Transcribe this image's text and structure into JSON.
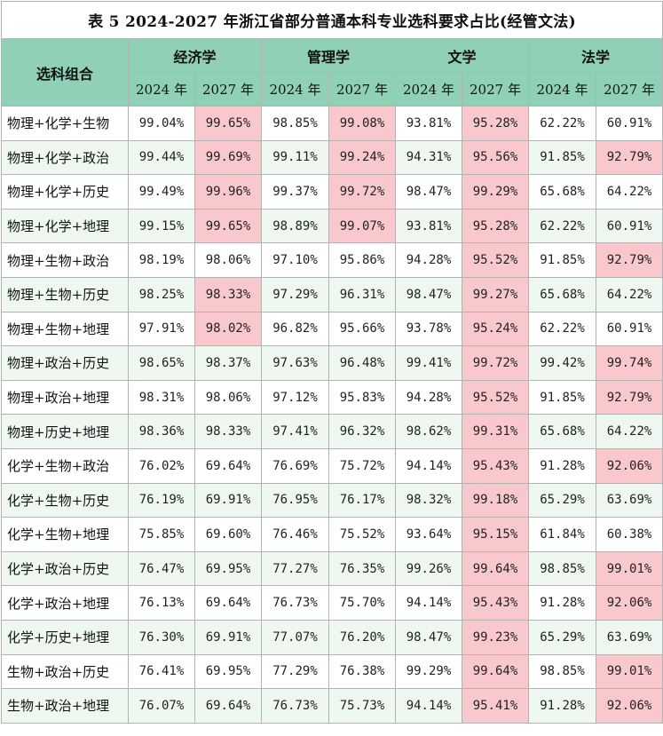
{
  "title": "表 5  2024-2027 年浙江省部分普通本科专业选科要求占比(经管文法)",
  "corner_label": "选科组合",
  "majors": [
    "经济学",
    "管理学",
    "文学",
    "法学"
  ],
  "years": [
    "2024 年",
    "2027 年"
  ],
  "highlight_color": "#f9c8cd",
  "header_color": "#8fd0b7",
  "rows": [
    {
      "combo": "物理+化学+生物",
      "values": [
        "99.04%",
        "99.65%",
        "98.85%",
        "99.08%",
        "93.81%",
        "95.28%",
        "62.22%",
        "60.91%"
      ],
      "hl": [
        1,
        3,
        5
      ]
    },
    {
      "combo": "物理+化学+政治",
      "values": [
        "99.44%",
        "99.69%",
        "99.11%",
        "99.24%",
        "94.31%",
        "95.56%",
        "91.85%",
        "92.79%"
      ],
      "hl": [
        1,
        3,
        5,
        7
      ]
    },
    {
      "combo": "物理+化学+历史",
      "values": [
        "99.49%",
        "99.96%",
        "99.37%",
        "99.72%",
        "98.47%",
        "99.29%",
        "65.68%",
        "64.22%"
      ],
      "hl": [
        1,
        3,
        5
      ]
    },
    {
      "combo": "物理+化学+地理",
      "values": [
        "99.15%",
        "99.65%",
        "98.89%",
        "99.07%",
        "93.81%",
        "95.28%",
        "62.22%",
        "60.91%"
      ],
      "hl": [
        1,
        3,
        5
      ]
    },
    {
      "combo": "物理+生物+政治",
      "values": [
        "98.19%",
        "98.06%",
        "97.10%",
        "95.86%",
        "94.28%",
        "95.52%",
        "91.85%",
        "92.79%"
      ],
      "hl": [
        5,
        7
      ]
    },
    {
      "combo": "物理+生物+历史",
      "values": [
        "98.25%",
        "98.33%",
        "97.29%",
        "96.31%",
        "98.47%",
        "99.27%",
        "65.68%",
        "64.22%"
      ],
      "hl": [
        1,
        5
      ]
    },
    {
      "combo": "物理+生物+地理",
      "values": [
        "97.91%",
        "98.02%",
        "96.82%",
        "95.66%",
        "93.78%",
        "95.24%",
        "62.22%",
        "60.91%"
      ],
      "hl": [
        1,
        5
      ]
    },
    {
      "combo": "物理+政治+历史",
      "values": [
        "98.65%",
        "98.37%",
        "97.63%",
        "96.48%",
        "99.41%",
        "99.72%",
        "99.42%",
        "99.74%"
      ],
      "hl": [
        5,
        7
      ]
    },
    {
      "combo": "物理+政治+地理",
      "values": [
        "98.31%",
        "98.06%",
        "97.12%",
        "95.83%",
        "94.28%",
        "95.52%",
        "91.85%",
        "92.79%"
      ],
      "hl": [
        5,
        7
      ]
    },
    {
      "combo": "物理+历史+地理",
      "values": [
        "98.36%",
        "98.33%",
        "97.41%",
        "96.32%",
        "98.62%",
        "99.31%",
        "65.68%",
        "64.22%"
      ],
      "hl": [
        5
      ]
    },
    {
      "combo": "化学+生物+政治",
      "values": [
        "76.02%",
        "69.64%",
        "76.69%",
        "75.72%",
        "94.14%",
        "95.43%",
        "91.28%",
        "92.06%"
      ],
      "hl": [
        5,
        7
      ]
    },
    {
      "combo": "化学+生物+历史",
      "values": [
        "76.19%",
        "69.91%",
        "76.95%",
        "76.17%",
        "98.32%",
        "99.18%",
        "65.29%",
        "63.69%"
      ],
      "hl": [
        5
      ]
    },
    {
      "combo": "化学+生物+地理",
      "values": [
        "75.85%",
        "69.60%",
        "76.46%",
        "75.52%",
        "93.64%",
        "95.15%",
        "61.84%",
        "60.38%"
      ],
      "hl": [
        5
      ]
    },
    {
      "combo": "化学+政治+历史",
      "values": [
        "76.47%",
        "69.95%",
        "77.27%",
        "76.35%",
        "99.26%",
        "99.64%",
        "98.85%",
        "99.01%"
      ],
      "hl": [
        5,
        7
      ]
    },
    {
      "combo": "化学+政治+地理",
      "values": [
        "76.13%",
        "69.64%",
        "76.73%",
        "75.70%",
        "94.14%",
        "95.43%",
        "91.28%",
        "92.06%"
      ],
      "hl": [
        5,
        7
      ]
    },
    {
      "combo": "化学+历史+地理",
      "values": [
        "76.30%",
        "69.91%",
        "77.07%",
        "76.20%",
        "98.47%",
        "99.23%",
        "65.29%",
        "63.69%"
      ],
      "hl": [
        5
      ]
    },
    {
      "combo": "生物+政治+历史",
      "values": [
        "76.41%",
        "69.95%",
        "77.29%",
        "76.38%",
        "99.29%",
        "99.64%",
        "98.85%",
        "99.01%"
      ],
      "hl": [
        5,
        7
      ]
    },
    {
      "combo": "生物+政治+地理",
      "values": [
        "76.07%",
        "69.64%",
        "76.73%",
        "75.73%",
        "94.14%",
        "95.41%",
        "91.28%",
        "92.06%"
      ],
      "hl": [
        5,
        7
      ]
    }
  ]
}
